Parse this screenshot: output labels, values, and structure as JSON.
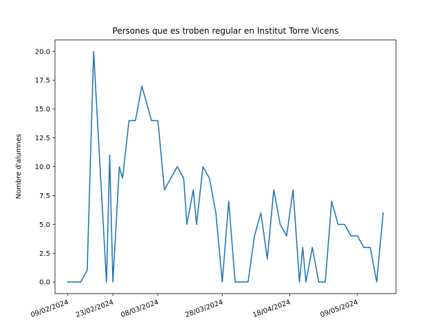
{
  "chart_data": {
    "type": "line",
    "title": "Persones que es troben regular en Institut Torre Vicens",
    "xlabel": "",
    "ylabel": "Nombre d'alumnes",
    "ylim": [
      -1.0,
      21.0
    ],
    "yticks": [
      0.0,
      2.5,
      5.0,
      7.5,
      10.0,
      12.5,
      15.0,
      17.5,
      20.0
    ],
    "ytick_labels": [
      "0.0",
      "2.5",
      "5.0",
      "7.5",
      "10.0",
      "12.5",
      "15.0",
      "17.5",
      "20.0"
    ],
    "xlim": [
      "2024-02-05",
      "2024-05-21"
    ],
    "xticks": [
      "2024-02-09",
      "2024-02-23",
      "2024-03-08",
      "2024-03-28",
      "2024-04-18",
      "2024-05-09"
    ],
    "xtick_labels": [
      "09/02/2024",
      "23/02/2024",
      "08/03/2024",
      "28/03/2024",
      "18/04/2024",
      "09/05/2024"
    ],
    "xtick_rotation": 20,
    "grid": false,
    "line_color": "#1f77b4",
    "series": [
      {
        "x": [
          "2024-02-09",
          "2024-02-11",
          "2024-02-13",
          "2024-02-15",
          "2024-02-17",
          "2024-02-19",
          "2024-02-21",
          "2024-02-22",
          "2024-02-23",
          "2024-02-25",
          "2024-02-26",
          "2024-02-28",
          "2024-03-01",
          "2024-03-03",
          "2024-03-06",
          "2024-03-08",
          "2024-03-10",
          "2024-03-12",
          "2024-03-14",
          "2024-03-16",
          "2024-03-17",
          "2024-03-19",
          "2024-03-20",
          "2024-03-22",
          "2024-03-24",
          "2024-03-26",
          "2024-03-28",
          "2024-03-30",
          "2024-04-01",
          "2024-04-03",
          "2024-04-05",
          "2024-04-07",
          "2024-04-09",
          "2024-04-11",
          "2024-04-13",
          "2024-04-15",
          "2024-04-17",
          "2024-04-19",
          "2024-04-21",
          "2024-04-22",
          "2024-04-23",
          "2024-04-25",
          "2024-04-27",
          "2024-04-29",
          "2024-05-01",
          "2024-05-03",
          "2024-05-05",
          "2024-05-07",
          "2024-05-09",
          "2024-05-11",
          "2024-05-13",
          "2024-05-15",
          "2024-05-17"
        ],
        "values": [
          0,
          0,
          0,
          1,
          20,
          10,
          0,
          11,
          0,
          10,
          9,
          14,
          14,
          17,
          14,
          14,
          8,
          9,
          10,
          9,
          5,
          8,
          5,
          10,
          9,
          6,
          0,
          7,
          0,
          0,
          0,
          4,
          6,
          2,
          8,
          5,
          4,
          8,
          0,
          3,
          0,
          3,
          0,
          0,
          7,
          5,
          5,
          4,
          4,
          3,
          3,
          0,
          6
        ]
      }
    ]
  }
}
